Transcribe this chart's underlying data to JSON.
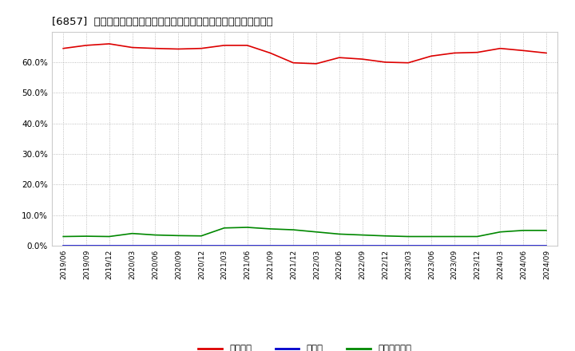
{
  "title": "[6857]  自己資本、のれん、繰延税金資産の総資産に対する比率の推移",
  "background_color": "#ffffff",
  "grid_color": "#999999",
  "series": [
    {
      "name": "自己資本",
      "color": "#dd0000",
      "data": [
        [
          "2019/06",
          64.5
        ],
        [
          "2019/09",
          65.5
        ],
        [
          "2019/12",
          66.0
        ],
        [
          "2020/03",
          64.8
        ],
        [
          "2020/06",
          64.5
        ],
        [
          "2020/09",
          64.3
        ],
        [
          "2020/12",
          64.5
        ],
        [
          "2021/03",
          65.5
        ],
        [
          "2021/06",
          65.5
        ],
        [
          "2021/09",
          63.0
        ],
        [
          "2021/12",
          59.8
        ],
        [
          "2022/03",
          59.5
        ],
        [
          "2022/06",
          61.5
        ],
        [
          "2022/09",
          61.0
        ],
        [
          "2022/12",
          60.0
        ],
        [
          "2023/03",
          59.8
        ],
        [
          "2023/06",
          62.0
        ],
        [
          "2023/09",
          63.0
        ],
        [
          "2023/12",
          63.2
        ],
        [
          "2024/03",
          64.5
        ],
        [
          "2024/06",
          63.8
        ],
        [
          "2024/09",
          63.0
        ]
      ]
    },
    {
      "name": "のれん",
      "color": "#0000cc",
      "data": [
        [
          "2019/06",
          0.0
        ],
        [
          "2019/09",
          0.0
        ],
        [
          "2019/12",
          0.0
        ],
        [
          "2020/03",
          0.0
        ],
        [
          "2020/06",
          0.0
        ],
        [
          "2020/09",
          0.0
        ],
        [
          "2020/12",
          0.0
        ],
        [
          "2021/03",
          0.0
        ],
        [
          "2021/06",
          0.0
        ],
        [
          "2021/09",
          0.0
        ],
        [
          "2021/12",
          0.0
        ],
        [
          "2022/03",
          0.0
        ],
        [
          "2022/06",
          0.0
        ],
        [
          "2022/09",
          0.0
        ],
        [
          "2022/12",
          0.0
        ],
        [
          "2023/03",
          0.0
        ],
        [
          "2023/06",
          0.0
        ],
        [
          "2023/09",
          0.0
        ],
        [
          "2023/12",
          0.0
        ],
        [
          "2024/03",
          0.0
        ],
        [
          "2024/06",
          0.0
        ],
        [
          "2024/09",
          0.0
        ]
      ]
    },
    {
      "name": "繰延税金資産",
      "color": "#008800",
      "data": [
        [
          "2019/06",
          3.0
        ],
        [
          "2019/09",
          3.1
        ],
        [
          "2019/12",
          3.0
        ],
        [
          "2020/03",
          4.0
        ],
        [
          "2020/06",
          3.5
        ],
        [
          "2020/09",
          3.3
        ],
        [
          "2020/12",
          3.2
        ],
        [
          "2021/03",
          5.8
        ],
        [
          "2021/06",
          6.0
        ],
        [
          "2021/09",
          5.5
        ],
        [
          "2021/12",
          5.2
        ],
        [
          "2022/03",
          4.5
        ],
        [
          "2022/06",
          3.8
        ],
        [
          "2022/09",
          3.5
        ],
        [
          "2022/12",
          3.2
        ],
        [
          "2023/03",
          3.0
        ],
        [
          "2023/06",
          3.0
        ],
        [
          "2023/09",
          3.0
        ],
        [
          "2023/12",
          3.0
        ],
        [
          "2024/03",
          4.5
        ],
        [
          "2024/06",
          5.0
        ],
        [
          "2024/09",
          5.0
        ]
      ]
    }
  ],
  "x_ticks": [
    "2019/06",
    "2019/09",
    "2019/12",
    "2020/03",
    "2020/06",
    "2020/09",
    "2020/12",
    "2021/03",
    "2021/06",
    "2021/09",
    "2021/12",
    "2022/03",
    "2022/06",
    "2022/09",
    "2022/12",
    "2023/03",
    "2023/06",
    "2023/09",
    "2023/12",
    "2024/03",
    "2024/06",
    "2024/09"
  ],
  "yticks": [
    0.0,
    10.0,
    20.0,
    30.0,
    40.0,
    50.0,
    60.0
  ],
  "ylim": [
    0.0,
    70.0
  ],
  "legend_labels": [
    "自己資本",
    "のれん",
    "繰延税金資産"
  ],
  "legend_colors": [
    "#dd0000",
    "#0000cc",
    "#008800"
  ]
}
